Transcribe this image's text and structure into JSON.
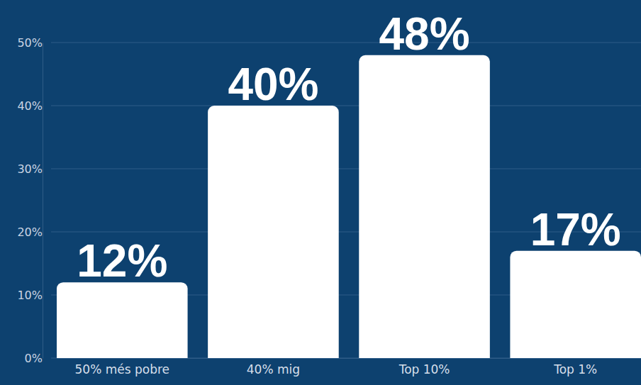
{
  "chart_data": {
    "type": "bar",
    "categories": [
      "50% més pobre",
      "40% mig",
      "Top 10%",
      "Top 1%"
    ],
    "values": [
      12,
      40,
      48,
      17
    ],
    "value_labels": [
      "12%",
      "40%",
      "48%",
      "17%"
    ],
    "color": "#ffffff",
    "ylim": [
      0,
      50
    ],
    "yticks": [
      {
        "value": 0,
        "label": "0%"
      },
      {
        "value": 10,
        "label": "10%"
      },
      {
        "value": 20,
        "label": "20%"
      },
      {
        "value": 30,
        "label": "30%"
      },
      {
        "value": 40,
        "label": "40%"
      },
      {
        "value": 50,
        "label": "50%"
      }
    ],
    "grid": true,
    "data_labels": true
  }
}
